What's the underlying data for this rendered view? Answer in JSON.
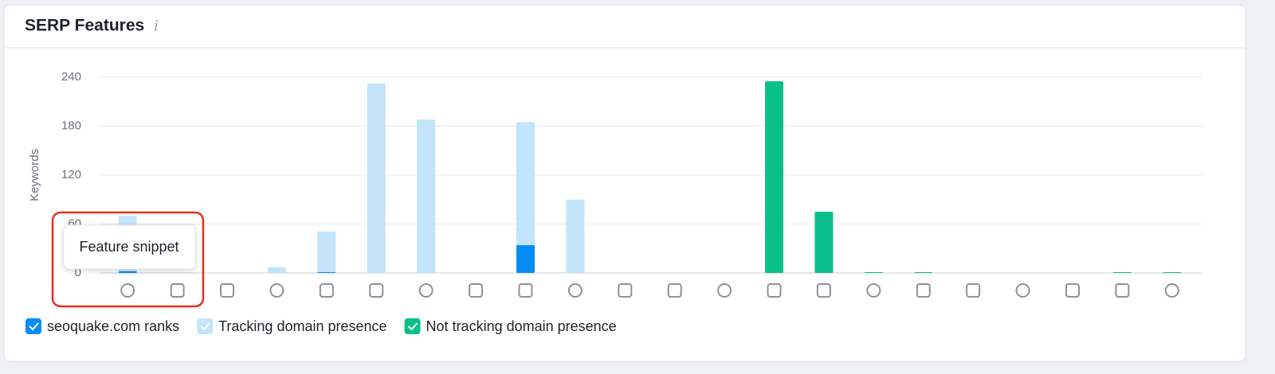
{
  "chart_data": {
    "type": "bar",
    "title": "SERP Features",
    "info_icon": "i",
    "y_label": "Keywords",
    "categories": [
      null,
      null,
      null,
      null,
      null,
      null,
      null,
      null,
      null,
      null,
      null,
      null,
      null,
      null,
      null,
      null,
      null,
      null,
      null,
      null,
      null,
      null
    ],
    "series": [
      {
        "name": "Tracking domain presence",
        "color": "#c4e4fb",
        "values": [
          70,
          0,
          0,
          7,
          51,
          232,
          188,
          0,
          185,
          90,
          0,
          0,
          0,
          0,
          0,
          0,
          0,
          0,
          0,
          0,
          0,
          0
        ]
      },
      {
        "name": "seoquake.com ranks",
        "color": "#068cf5",
        "values": [
          2,
          0,
          0,
          0,
          1,
          0,
          0,
          0,
          34,
          0,
          0,
          0,
          0,
          0,
          0,
          0,
          0,
          0,
          0,
          0,
          0,
          0
        ]
      },
      {
        "name": "Not tracking domain presence",
        "color": "#0bbf8b",
        "values": [
          0,
          0,
          0,
          0,
          0,
          0,
          0,
          0,
          0,
          0,
          0,
          0,
          0,
          235,
          75,
          1,
          1,
          0,
          0,
          0,
          1,
          1
        ]
      }
    ],
    "legend_order": [
      1,
      0,
      2
    ],
    "ylim": [
      0,
      240
    ],
    "yticks": [
      0,
      60,
      120,
      180,
      240
    ],
    "grid": true,
    "tooltip": "Feature snippet"
  }
}
